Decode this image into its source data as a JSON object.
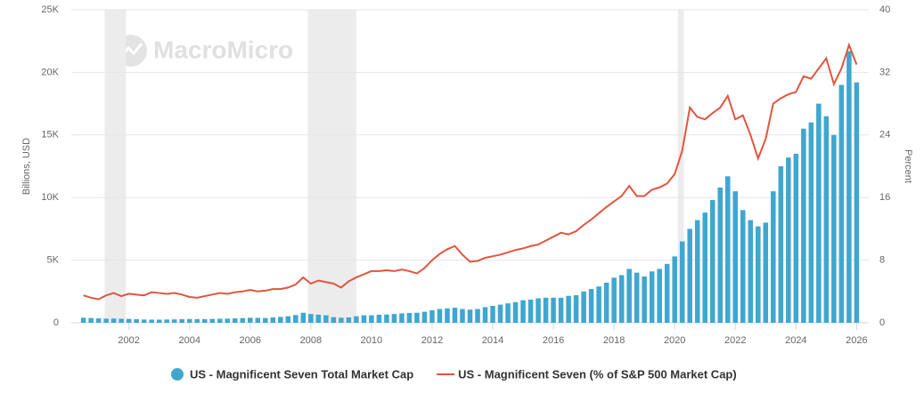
{
  "chart_data": {
    "type": "bar-line",
    "watermark": "MacroMicro",
    "y_label": "Billions, USD",
    "y2_label": "Percent",
    "x": [
      2000.5,
      2000.75,
      2001,
      2001.25,
      2001.5,
      2001.75,
      2002,
      2002.25,
      2002.5,
      2002.75,
      2003,
      2003.25,
      2003.5,
      2003.75,
      2004,
      2004.25,
      2004.5,
      2004.75,
      2005,
      2005.25,
      2005.5,
      2005.75,
      2006,
      2006.25,
      2006.5,
      2006.75,
      2007,
      2007.25,
      2007.5,
      2007.75,
      2008,
      2008.25,
      2008.5,
      2008.75,
      2009,
      2009.25,
      2009.5,
      2009.75,
      2010,
      2010.25,
      2010.5,
      2010.75,
      2011,
      2011.25,
      2011.5,
      2011.75,
      2012,
      2012.25,
      2012.5,
      2012.75,
      2013,
      2013.25,
      2013.5,
      2013.75,
      2014,
      2014.25,
      2014.5,
      2014.75,
      2015,
      2015.25,
      2015.5,
      2015.75,
      2016,
      2016.25,
      2016.5,
      2016.75,
      2017,
      2017.25,
      2017.5,
      2017.75,
      2018,
      2018.25,
      2018.5,
      2018.75,
      2019,
      2019.25,
      2019.5,
      2019.75,
      2020,
      2020.25,
      2020.5,
      2020.75,
      2021,
      2021.25,
      2021.5,
      2021.75,
      2022,
      2022.25,
      2022.5,
      2022.75,
      2023,
      2023.25,
      2023.5,
      2023.75,
      2024,
      2024.25,
      2024.5,
      2024.75,
      2025,
      2025.25,
      2025.5,
      2025.75,
      2026
    ],
    "series": [
      {
        "name": "US - Magnificent Seven Total Market Cap",
        "type": "bar",
        "color": "#3fa7cf",
        "values": [
          400,
          380,
          350,
          330,
          340,
          320,
          310,
          290,
          260,
          250,
          250,
          260,
          270,
          280,
          300,
          290,
          290,
          310,
          320,
          330,
          350,
          370,
          400,
          390,
          380,
          430,
          470,
          520,
          620,
          800,
          700,
          650,
          600,
          450,
          400,
          430,
          520,
          600,
          600,
          640,
          660,
          700,
          750,
          780,
          800,
          880,
          1000,
          1100,
          1150,
          1200,
          1100,
          1050,
          1100,
          1250,
          1350,
          1450,
          1550,
          1650,
          1800,
          1850,
          1950,
          2000,
          2000,
          2000,
          2150,
          2200,
          2500,
          2700,
          2900,
          3200,
          3600,
          3800,
          4300,
          4000,
          3700,
          4100,
          4300,
          4700,
          5300,
          6500,
          7500,
          8200,
          8800,
          9800,
          10800,
          11700,
          10500,
          9000,
          8200,
          7700,
          8000,
          10500,
          12500,
          13200,
          13500,
          15500,
          16000,
          17500,
          16500,
          15000,
          19000,
          21700,
          19200
        ]
      },
      {
        "name": "US - Magnificent Seven (% of S&P 500 Market Cap)",
        "type": "line",
        "axis": "y2",
        "color": "#e0553f",
        "values": [
          3.5,
          3.2,
          3.0,
          3.5,
          3.8,
          3.4,
          3.7,
          3.6,
          3.5,
          3.9,
          3.8,
          3.7,
          3.8,
          3.6,
          3.3,
          3.2,
          3.4,
          3.6,
          3.8,
          3.7,
          3.9,
          4.0,
          4.2,
          4.0,
          4.1,
          4.3,
          4.3,
          4.5,
          4.9,
          5.8,
          5.0,
          5.4,
          5.2,
          5.0,
          4.5,
          5.3,
          5.8,
          6.2,
          6.6,
          6.6,
          6.7,
          6.6,
          6.8,
          6.6,
          6.3,
          7.0,
          8.0,
          8.8,
          9.4,
          9.8,
          8.7,
          7.8,
          7.9,
          8.3,
          8.5,
          8.7,
          9.0,
          9.3,
          9.5,
          9.8,
          10.0,
          10.5,
          11.0,
          11.5,
          11.3,
          11.7,
          12.5,
          13.2,
          14.0,
          14.8,
          15.5,
          16.2,
          17.5,
          16.2,
          16.2,
          17.0,
          17.3,
          17.8,
          19.0,
          22.0,
          27.5,
          26.3,
          26.0,
          26.8,
          27.5,
          29.0,
          26.0,
          26.5,
          24.0,
          21.0,
          23.5,
          28.0,
          28.7,
          29.2,
          29.5,
          31.5,
          31.2,
          32.5,
          33.8,
          30.5,
          32.5,
          35.5,
          33.0
        ]
      }
    ],
    "shaded_ranges": [
      [
        2001.2,
        2001.9
      ],
      [
        2007.9,
        2009.5
      ],
      [
        2020.1,
        2020.3
      ]
    ],
    "xlim": [
      2000.1,
      2026.4
    ],
    "xticks": [
      2002,
      2004,
      2006,
      2008,
      2010,
      2012,
      2014,
      2016,
      2018,
      2020,
      2022,
      2024,
      2026
    ],
    "ylim": [
      0,
      25000
    ],
    "yticks": [
      0,
      {
        "value": 5000,
        "label": "5K"
      },
      {
        "value": 10000,
        "label": "10K"
      },
      {
        "value": 15000,
        "label": "15K"
      },
      {
        "value": 20000,
        "label": "20K"
      },
      {
        "value": 25000,
        "label": "25K"
      }
    ],
    "y2lim": [
      0,
      40
    ],
    "y2ticks": [
      0,
      8,
      16,
      24,
      32,
      40
    ],
    "grid": true
  }
}
